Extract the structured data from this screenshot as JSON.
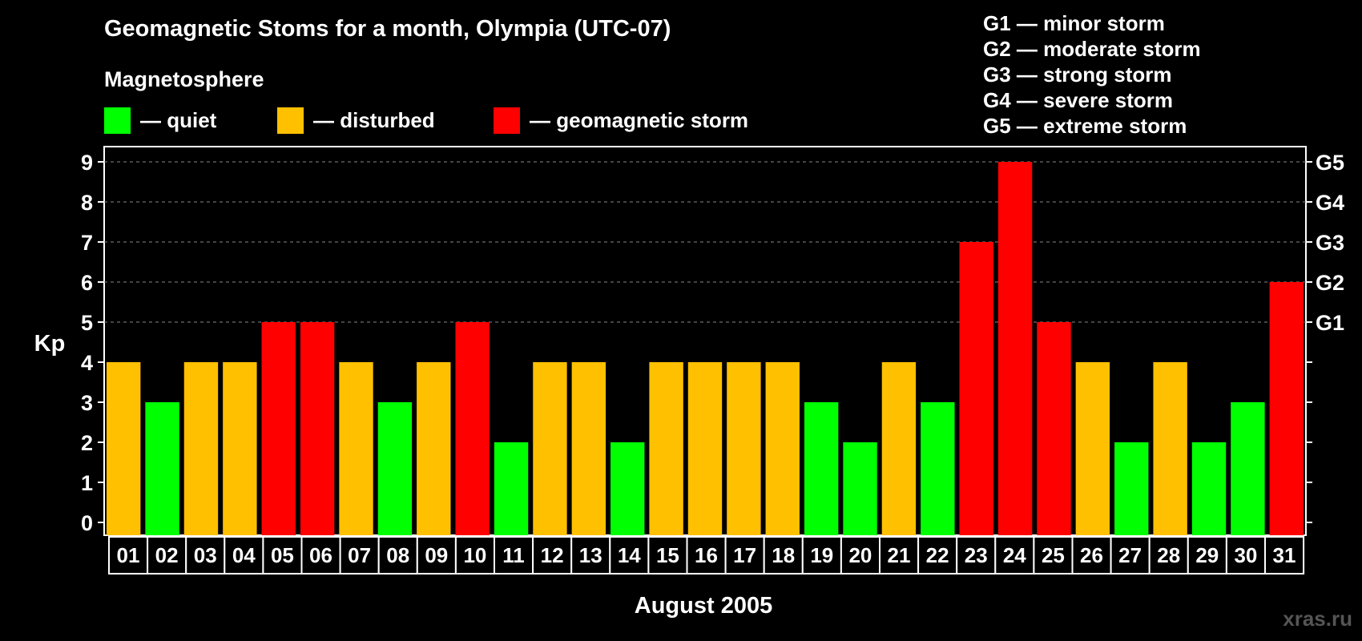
{
  "header": {
    "title": "Geomagnetic Stoms for a month, Olympia (UTC-07)",
    "legend_heading": "Magnetosphere"
  },
  "legend": [
    {
      "label": "— quiet",
      "color": "#00ff00"
    },
    {
      "label": "— disturbed",
      "color": "#ffc000"
    },
    {
      "label": "— geomagnetic storm",
      "color": "#ff0000"
    }
  ],
  "g_scale": [
    "G1 — minor storm",
    "G2 — moderate storm",
    "G3 — strong storm",
    "G4 — severe storm",
    "G5 — extreme storm"
  ],
  "watermark": "xras.ru",
  "chart_data": {
    "type": "bar",
    "xlabel": "August 2005",
    "ylabel": "Kp",
    "ylim": [
      0,
      9
    ],
    "yticks": [
      0,
      1,
      2,
      3,
      4,
      5,
      6,
      7,
      8,
      9
    ],
    "right_axis_labels": [
      {
        "value": 5,
        "label": "G1"
      },
      {
        "value": 6,
        "label": "G2"
      },
      {
        "value": 7,
        "label": "G3"
      },
      {
        "value": 8,
        "label": "G4"
      },
      {
        "value": 9,
        "label": "G5"
      }
    ],
    "grid": "dashed horizontal at Kp 5 to 9",
    "categories": [
      "01",
      "02",
      "03",
      "04",
      "05",
      "06",
      "07",
      "08",
      "09",
      "10",
      "11",
      "12",
      "13",
      "14",
      "15",
      "16",
      "17",
      "18",
      "19",
      "20",
      "21",
      "22",
      "23",
      "24",
      "25",
      "26",
      "27",
      "28",
      "29",
      "30",
      "31"
    ],
    "values": [
      4,
      3,
      4,
      4,
      5,
      5,
      4,
      3,
      4,
      5,
      2,
      4,
      4,
      2,
      4,
      4,
      4,
      4,
      3,
      2,
      4,
      3,
      7,
      9,
      5,
      4,
      2,
      4,
      2,
      3,
      6
    ],
    "colors": {
      "quiet": "#00ff00",
      "disturbed": "#ffc000",
      "storm": "#ff0000"
    }
  }
}
